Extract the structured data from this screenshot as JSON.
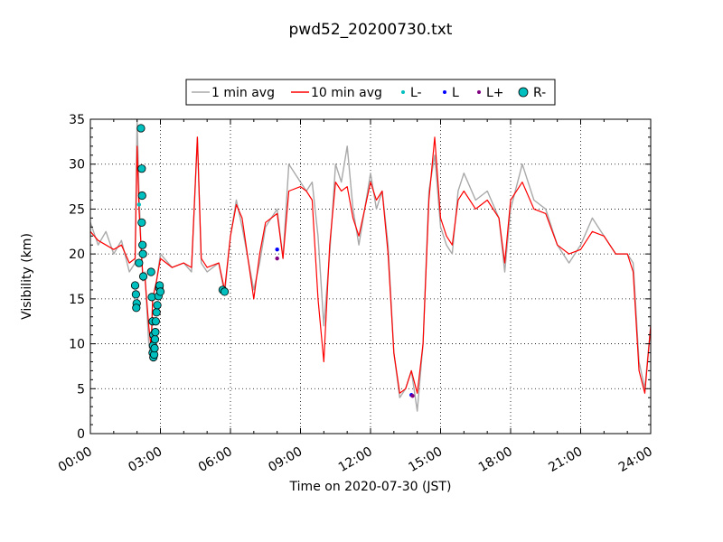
{
  "chart_data": {
    "type": "line",
    "title": "pwd52_20200730.txt",
    "xlabel": "Time on 2020-07-30 (JST)",
    "ylabel": "Visibility (km)",
    "xlim": [
      "00:00",
      "24:00"
    ],
    "ylim": [
      0,
      35
    ],
    "x_ticks": [
      "00:00",
      "03:00",
      "06:00",
      "09:00",
      "12:00",
      "15:00",
      "18:00",
      "21:00",
      "24:00"
    ],
    "y_ticks": [
      "0",
      "5",
      "10",
      "15",
      "20",
      "25",
      "30",
      "35"
    ],
    "grid": true,
    "legend_position": "top-center, above plot",
    "legend": [
      {
        "label": "1 min avg",
        "kind": "line",
        "color": "#a9a9a9"
      },
      {
        "label": "10 min avg",
        "kind": "line",
        "color": "#ff0000"
      },
      {
        "label": "L-",
        "kind": "point",
        "color": "#00bfbf"
      },
      {
        "label": "L",
        "kind": "point",
        "color": "#0000ff"
      },
      {
        "label": "L+",
        "kind": "point",
        "color": "#800080"
      },
      {
        "label": "R-",
        "kind": "marker",
        "color": "#00bfbf"
      }
    ],
    "series": [
      {
        "name": "1 min avg",
        "color": "#a9a9a9",
        "x": [
          "00:00",
          "00:20",
          "00:40",
          "01:00",
          "01:20",
          "01:40",
          "01:55",
          "02:00",
          "02:05",
          "02:10",
          "02:15",
          "02:20",
          "02:30",
          "02:36",
          "02:40",
          "02:50",
          "03:00",
          "03:30",
          "04:00",
          "04:20",
          "04:35",
          "04:45",
          "05:00",
          "05:30",
          "05:45",
          "06:00",
          "06:15",
          "06:30",
          "07:00",
          "07:15",
          "07:30",
          "08:00",
          "08:15",
          "08:30",
          "09:00",
          "09:15",
          "09:30",
          "09:45",
          "10:00",
          "10:15",
          "10:30",
          "10:45",
          "11:00",
          "11:15",
          "11:30",
          "12:00",
          "12:15",
          "12:30",
          "12:45",
          "13:00",
          "13:15",
          "13:30",
          "13:45",
          "14:00",
          "14:15",
          "14:30",
          "14:45",
          "15:00",
          "15:15",
          "15:30",
          "15:45",
          "16:00",
          "16:30",
          "17:00",
          "17:30",
          "17:45",
          "18:00",
          "18:30",
          "19:00",
          "19:30",
          "20:00",
          "20:30",
          "21:00",
          "21:30",
          "22:00",
          "22:30",
          "23:00",
          "23:15",
          "23:30",
          "23:45",
          "24:00"
        ],
        "y": [
          23.5,
          21,
          22.5,
          20,
          21.5,
          18,
          19,
          35,
          27,
          21,
          17,
          18,
          10,
          8.5,
          15,
          17,
          20,
          18.5,
          19,
          18,
          33,
          19,
          18,
          19,
          15.5,
          22,
          26,
          23,
          16,
          19,
          23,
          25,
          19.5,
          30,
          28,
          27,
          28,
          22,
          12,
          20,
          30,
          28,
          32,
          25,
          21,
          29,
          25,
          27,
          21,
          9,
          4,
          5,
          7,
          2.5,
          10,
          27,
          31,
          23,
          21,
          20,
          27,
          29,
          26,
          27,
          24,
          18,
          25,
          30,
          26,
          25,
          21,
          19,
          21,
          24,
          22,
          20,
          20,
          19,
          8,
          5,
          12
        ]
      },
      {
        "name": "10 min avg",
        "color": "#ff0000",
        "x": [
          "00:00",
          "00:20",
          "00:40",
          "01:00",
          "01:20",
          "01:40",
          "01:55",
          "02:00",
          "02:05",
          "02:10",
          "02:15",
          "02:20",
          "02:30",
          "02:36",
          "02:40",
          "02:50",
          "03:00",
          "03:30",
          "04:00",
          "04:20",
          "04:35",
          "04:45",
          "05:00",
          "05:30",
          "05:45",
          "06:00",
          "06:15",
          "06:30",
          "07:00",
          "07:15",
          "07:30",
          "08:00",
          "08:15",
          "08:30",
          "09:00",
          "09:15",
          "09:30",
          "09:45",
          "10:00",
          "10:15",
          "10:30",
          "10:45",
          "11:00",
          "11:15",
          "11:30",
          "12:00",
          "12:15",
          "12:30",
          "12:45",
          "13:00",
          "13:15",
          "13:30",
          "13:45",
          "14:00",
          "14:15",
          "14:30",
          "14:45",
          "15:00",
          "15:15",
          "15:30",
          "15:45",
          "16:00",
          "16:30",
          "17:00",
          "17:30",
          "17:45",
          "18:00",
          "18:30",
          "19:00",
          "19:30",
          "20:00",
          "20:30",
          "21:00",
          "21:30",
          "22:00",
          "22:30",
          "23:00",
          "23:15",
          "23:30",
          "23:45",
          "24:00"
        ],
        "y": [
          22.5,
          21.5,
          21,
          20.5,
          21,
          19,
          19.5,
          32,
          25,
          21,
          17.5,
          17.5,
          12,
          9.5,
          15,
          17,
          19.5,
          18.5,
          19,
          18.5,
          33,
          19.5,
          18.5,
          19,
          16,
          22,
          25.5,
          24,
          15,
          20,
          23.5,
          24.5,
          19.5,
          27,
          27.5,
          27,
          26,
          15,
          8,
          21,
          28,
          27,
          27.5,
          24,
          22,
          28,
          26,
          27,
          20,
          9,
          4.5,
          5,
          7,
          4.5,
          10,
          26,
          33,
          24,
          22,
          21,
          26,
          27,
          25,
          26,
          24,
          19,
          26,
          28,
          25,
          24.5,
          21,
          20,
          20.5,
          22.5,
          22,
          20,
          20,
          18,
          7,
          4.5,
          12
        ]
      }
    ],
    "point_series": [
      {
        "name": "R-",
        "color": "#00bfbf",
        "marker": "circle-large",
        "x": [
          "01:55",
          "01:57",
          "01:59",
          "01:58",
          "02:05",
          "02:10",
          "02:12",
          "02:13",
          "02:12",
          "02:14",
          "02:15",
          "02:16",
          "02:36",
          "02:38",
          "02:40",
          "02:42",
          "02:41",
          "02:40",
          "02:42",
          "02:44",
          "02:45",
          "02:46",
          "02:47",
          "02:48",
          "02:50",
          "02:52",
          "02:55",
          "02:57",
          "02:58",
          "03:00",
          "05:40",
          "05:45"
        ],
        "y": [
          16.5,
          15.5,
          14.5,
          14,
          19,
          34,
          29.5,
          26.5,
          23.5,
          21,
          20,
          17.5,
          18,
          15.2,
          12.5,
          11,
          9.8,
          9,
          8.5,
          8.8,
          9.5,
          10.5,
          11.3,
          12.5,
          13.5,
          14.3,
          15.3,
          16.2,
          16.5,
          15.8,
          16,
          15.8
        ]
      },
      {
        "name": "L-",
        "color": "#00bfbf",
        "marker": "dot",
        "x": [
          "02:05"
        ],
        "y": [
          25.5
        ]
      },
      {
        "name": "L",
        "color": "#0000ff",
        "marker": "dot",
        "x": [
          "08:00",
          "13:45"
        ],
        "y": [
          20.5,
          4.3
        ]
      },
      {
        "name": "L+",
        "color": "#800080",
        "marker": "dot",
        "x": [
          "08:00",
          "13:48"
        ],
        "y": [
          19.5,
          4.2
        ]
      }
    ]
  }
}
